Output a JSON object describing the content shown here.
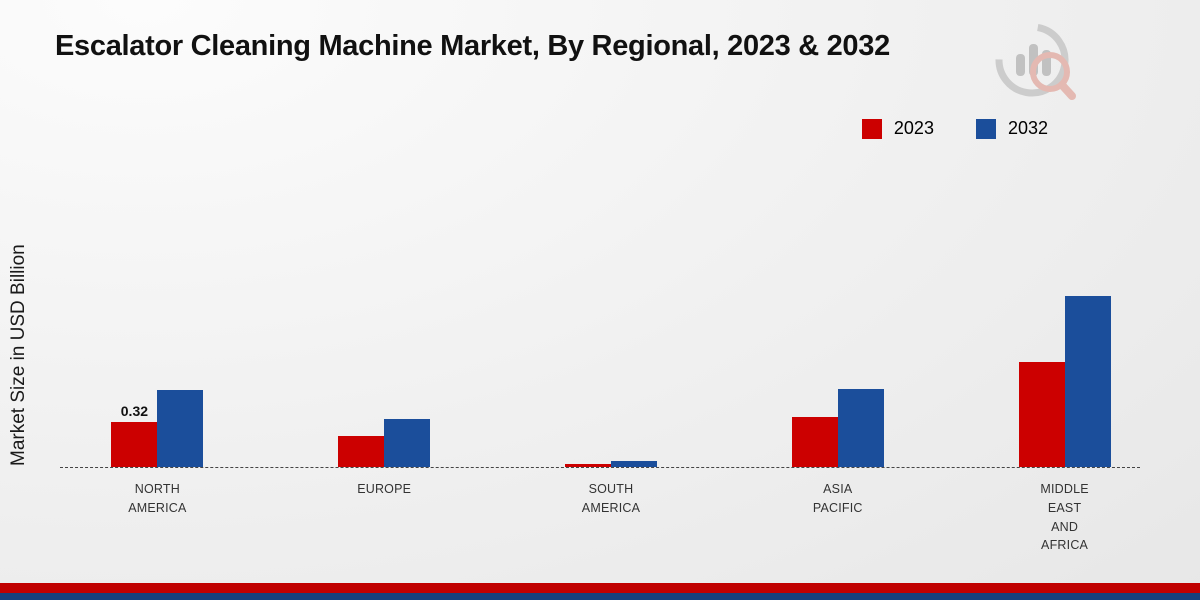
{
  "title": "Escalator Cleaning Machine Market, By Regional, 2023 & 2032",
  "y_axis_label": "Market Size in USD Billion",
  "colors": {
    "series_2023": "#cc0000",
    "series_2032": "#1b4e9b",
    "footer_red": "#c00000",
    "footer_blue": "#16407c"
  },
  "legend": {
    "items": [
      {
        "label": "2023",
        "color": "#cc0000"
      },
      {
        "label": "2032",
        "color": "#1b4e9b"
      }
    ]
  },
  "chart_data": {
    "type": "bar",
    "title": "Escalator Cleaning Machine Market, By Regional, 2023 & 2032",
    "xlabel": "",
    "ylabel": "Market Size in USD Billion",
    "ylim": [
      0,
      2.3
    ],
    "grid": false,
    "legend_position": "top-right",
    "categories": [
      "NORTH AMERICA",
      "EUROPE",
      "SOUTH AMERICA",
      "ASIA PACIFIC",
      "MIDDLE EAST AND AFRICA"
    ],
    "categories_lines": [
      [
        "NORTH",
        "AMERICA"
      ],
      [
        "EUROPE"
      ],
      [
        "SOUTH",
        "AMERICA"
      ],
      [
        "ASIA",
        "PACIFIC"
      ],
      [
        "MIDDLE",
        "EAST",
        "AND",
        "AFRICA"
      ]
    ],
    "series": [
      {
        "name": "2023",
        "color": "#cc0000",
        "values": [
          0.32,
          0.22,
          0.02,
          0.35,
          0.74
        ]
      },
      {
        "name": "2032",
        "color": "#1b4e9b",
        "values": [
          0.54,
          0.34,
          0.04,
          0.55,
          1.2
        ]
      }
    ],
    "annotations": [
      {
        "series": "2023",
        "category_index": 0,
        "text": "0.32"
      }
    ]
  }
}
